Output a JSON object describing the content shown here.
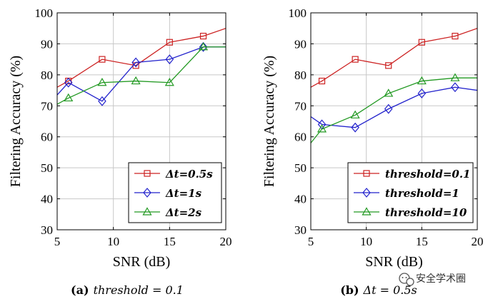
{
  "chart_data": [
    {
      "type": "line",
      "caption_prefix": "(a)",
      "caption": "threshold = 0.1",
      "xlabel": "SNR (dB)",
      "ylabel": "Filtering Accuracy (%)",
      "xlim": [
        5,
        20
      ],
      "ylim": [
        30,
        100
      ],
      "xticks": [
        5,
        10,
        15,
        20
      ],
      "yticks": [
        30,
        40,
        50,
        60,
        70,
        80,
        90,
        100
      ],
      "grid": true,
      "legend_position": "bottom-right",
      "series": [
        {
          "name": "Δt=0.5s",
          "color": "#cc2222",
          "marker": "square",
          "x": [
            5,
            6,
            9,
            12,
            15,
            18,
            20
          ],
          "y": [
            76,
            78,
            85,
            83,
            90.5,
            92.5,
            95
          ],
          "marker_x": [
            6,
            9,
            12,
            15,
            18
          ]
        },
        {
          "name": "Δt=1s",
          "color": "#2222cc",
          "marker": "diamond",
          "x": [
            5,
            6,
            9,
            12,
            15,
            18,
            20
          ],
          "y": [
            73.5,
            77.5,
            71.5,
            84,
            85,
            89,
            89
          ],
          "marker_x": [
            6,
            9,
            12,
            15,
            18
          ]
        },
        {
          "name": "Δt=2s",
          "color": "#229922",
          "marker": "triangle",
          "x": [
            5,
            6,
            9,
            12,
            15,
            18,
            20
          ],
          "y": [
            70.5,
            72.5,
            77.5,
            78,
            77.5,
            89,
            89
          ],
          "marker_x": [
            6,
            9,
            12,
            15,
            18
          ]
        }
      ]
    },
    {
      "type": "line",
      "caption_prefix": "(b)",
      "caption": "Δt = 0.5s",
      "xlabel": "SNR (dB)",
      "ylabel": "Filtering Accuracy (%)",
      "xlim": [
        5,
        20
      ],
      "ylim": [
        30,
        100
      ],
      "xticks": [
        5,
        10,
        15,
        20
      ],
      "yticks": [
        30,
        40,
        50,
        60,
        70,
        80,
        90,
        100
      ],
      "grid": true,
      "legend_position": "bottom-right",
      "series": [
        {
          "name": "threshold=0.1",
          "color": "#cc2222",
          "marker": "square",
          "x": [
            5,
            6,
            9,
            12,
            15,
            18,
            20
          ],
          "y": [
            76,
            78,
            85,
            83,
            90.5,
            92.5,
            95
          ],
          "marker_x": [
            6,
            9,
            12,
            15,
            18
          ]
        },
        {
          "name": "threshold=1",
          "color": "#2222cc",
          "marker": "diamond",
          "x": [
            5,
            6,
            9,
            12,
            15,
            18,
            20
          ],
          "y": [
            66.5,
            64,
            63,
            69,
            74,
            76,
            75
          ],
          "marker_x": [
            6,
            9,
            12,
            15,
            18
          ]
        },
        {
          "name": "threshold=10",
          "color": "#229922",
          "marker": "triangle",
          "x": [
            5,
            6,
            9,
            12,
            15,
            18,
            20
          ],
          "y": [
            58,
            62.5,
            67,
            74,
            78,
            79,
            79
          ],
          "marker_x": [
            6,
            9,
            12,
            15,
            18
          ]
        }
      ]
    }
  ],
  "watermark": {
    "text": "安全学术圈",
    "icon": "wechat-icon"
  }
}
